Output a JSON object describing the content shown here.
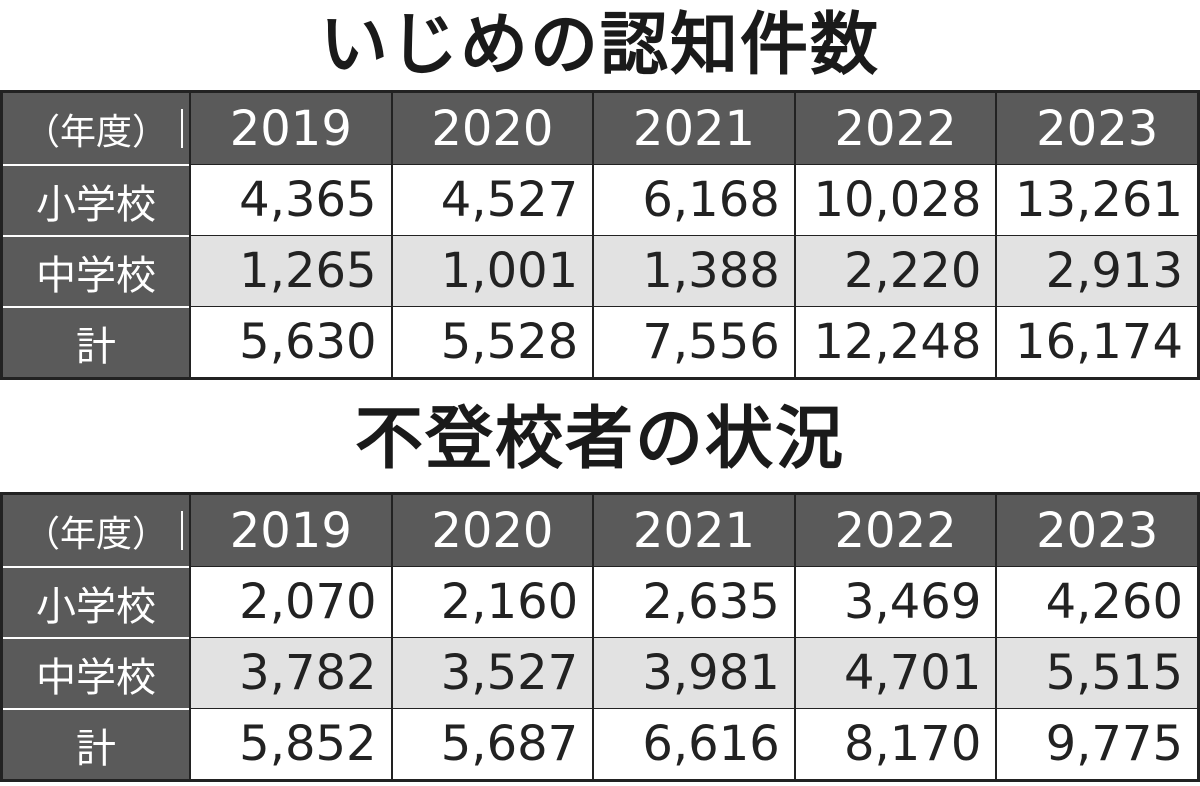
{
  "tables": [
    {
      "title": "いじめの認知件数",
      "header": [
        "（年度）",
        "2019",
        "2020",
        "2021",
        "2022",
        "2023"
      ],
      "rows": [
        {
          "label": "小学校",
          "values": [
            "4,365",
            "4,527",
            "6,168",
            "10,028",
            "13,261"
          ]
        },
        {
          "label": "中学校",
          "values": [
            "1,265",
            "1,001",
            "1,388",
            "2,220",
            "2,913"
          ]
        },
        {
          "label": "計",
          "values": [
            "5,630",
            "5,528",
            "7,556",
            "12,248",
            "16,174"
          ]
        }
      ]
    },
    {
      "title": "不登校者の状況",
      "header": [
        "（年度）",
        "2019",
        "2020",
        "2021",
        "2022",
        "2023"
      ],
      "rows": [
        {
          "label": "小学校",
          "values": [
            "2,070",
            "2,160",
            "2,635",
            "3,469",
            "4,260"
          ]
        },
        {
          "label": "中学校",
          "values": [
            "3,782",
            "3,527",
            "3,981",
            "4,701",
            "5,515"
          ]
        },
        {
          "label": "計",
          "values": [
            "5,852",
            "5,687",
            "6,616",
            "8,170",
            "9,775"
          ]
        }
      ]
    }
  ]
}
